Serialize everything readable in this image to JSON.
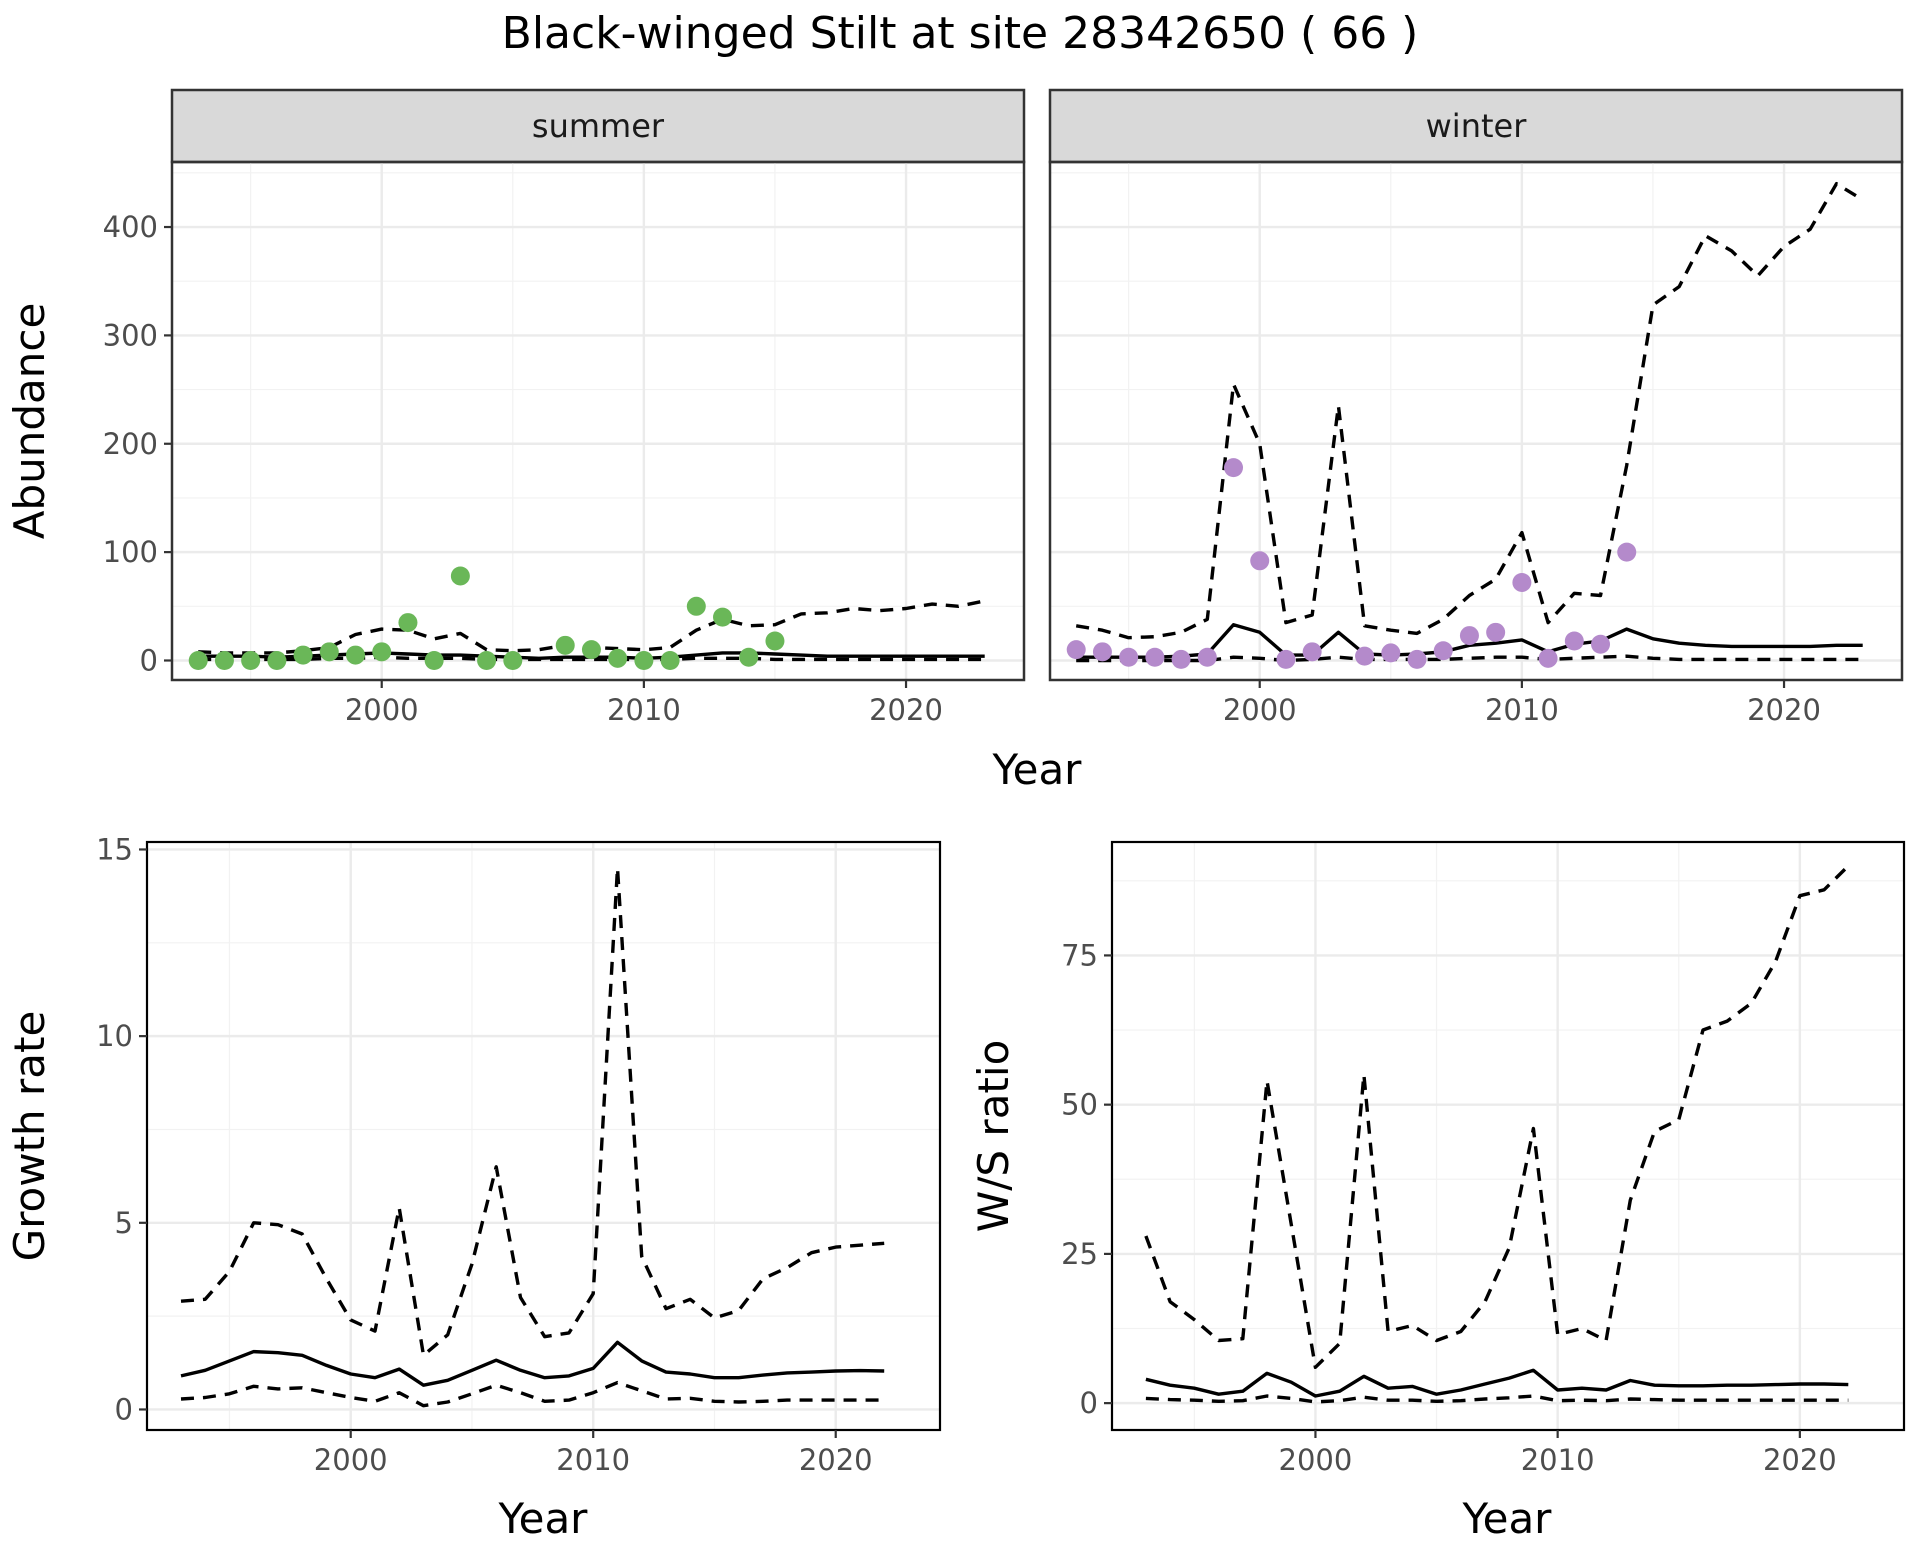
{
  "title": "Black-winged Stilt at site 28342650 ( 66 )",
  "colors": {
    "summer_points": "#6ab758",
    "winter_points": "#b48acb",
    "strip_fill": "#d9d9d9",
    "line": "#000000"
  },
  "chart_data": [
    {
      "type": "line",
      "panel": "summer",
      "strip": "summer",
      "xlabel": "Year",
      "ylabel": "Abundance",
      "xlim": [
        1992,
        2024.5
      ],
      "ylim": [
        -18,
        460
      ],
      "xticks": [
        2000,
        2010,
        2020
      ],
      "yticks": [
        0,
        100,
        200,
        300,
        400
      ],
      "grid": true,
      "x": [
        1993,
        1994,
        1995,
        1996,
        1997,
        1998,
        1999,
        2000,
        2001,
        2002,
        2003,
        2004,
        2005,
        2006,
        2007,
        2008,
        2009,
        2010,
        2011,
        2012,
        2013,
        2014,
        2015,
        2016,
        2017,
        2018,
        2019,
        2020,
        2021,
        2022,
        2023
      ],
      "series": [
        {
          "role": "estimate",
          "dash": "solid",
          "values": [
            4,
            4,
            4,
            3,
            4,
            5,
            6,
            7,
            6,
            5,
            5,
            4,
            3,
            2,
            3,
            3,
            3,
            2,
            3,
            5,
            7,
            7,
            6,
            5,
            4,
            4,
            4,
            4,
            4,
            4,
            4
          ]
        },
        {
          "role": "upper",
          "dash": "dashed",
          "values": [
            8,
            7,
            7,
            7,
            9,
            12,
            24,
            29,
            28,
            20,
            25,
            10,
            9,
            10,
            14,
            12,
            11,
            10,
            12,
            28,
            38,
            32,
            33,
            43,
            44,
            48,
            46,
            48,
            52,
            50,
            55
          ]
        },
        {
          "role": "lower",
          "dash": "dashed",
          "values": [
            1,
            1,
            1,
            1,
            1,
            2,
            2,
            3,
            2,
            2,
            2,
            1,
            1,
            1,
            1,
            1,
            1,
            1,
            1,
            2,
            2,
            2,
            1,
            1,
            1,
            1,
            1,
            1,
            1,
            1,
            1
          ]
        }
      ],
      "points": {
        "x": [
          1993,
          1994,
          1995,
          1996,
          1997,
          1998,
          1999,
          2000,
          2001,
          2002,
          2003,
          2004,
          2005,
          2007,
          2008,
          2009,
          2010,
          2011,
          2012,
          2013,
          2014,
          2015
        ],
        "y": [
          0,
          0,
          0,
          0,
          5,
          8,
          5,
          8,
          35,
          0,
          78,
          0,
          0,
          14,
          10,
          2,
          0,
          0,
          50,
          40,
          3,
          18
        ]
      }
    },
    {
      "type": "line",
      "panel": "winter",
      "strip": "winter",
      "xlabel": "Year",
      "ylabel": "Abundance",
      "xlim": [
        1992,
        2024.5
      ],
      "ylim": [
        -18,
        460
      ],
      "xticks": [
        2000,
        2010,
        2020
      ],
      "yticks": [
        0,
        100,
        200,
        300,
        400
      ],
      "grid": true,
      "x": [
        1993,
        1994,
        1995,
        1996,
        1997,
        1998,
        1999,
        2000,
        2001,
        2002,
        2003,
        2004,
        2005,
        2006,
        2007,
        2008,
        2009,
        2010,
        2011,
        2012,
        2013,
        2014,
        2015,
        2016,
        2017,
        2018,
        2019,
        2020,
        2021,
        2022,
        2023
      ],
      "series": [
        {
          "role": "estimate",
          "dash": "solid",
          "values": [
            3,
            3,
            3,
            3,
            4,
            6,
            33,
            26,
            5,
            5,
            26,
            6,
            5,
            6,
            8,
            14,
            16,
            19,
            8,
            15,
            18,
            29,
            20,
            16,
            14,
            13,
            13,
            13,
            13,
            14,
            14
          ]
        },
        {
          "role": "upper",
          "dash": "dashed",
          "values": [
            32,
            28,
            21,
            22,
            26,
            38,
            255,
            200,
            35,
            42,
            235,
            32,
            28,
            25,
            38,
            60,
            75,
            118,
            35,
            62,
            60,
            180,
            328,
            345,
            392,
            378,
            355,
            382,
            398,
            440,
            425
          ]
        },
        {
          "role": "lower",
          "dash": "dashed",
          "values": [
            0,
            0,
            0,
            0,
            0,
            0,
            3,
            2,
            0,
            1,
            3,
            1,
            1,
            1,
            1,
            2,
            3,
            3,
            1,
            2,
            3,
            4,
            2,
            1,
            1,
            1,
            1,
            1,
            1,
            1,
            1
          ]
        }
      ],
      "points": {
        "x": [
          1993,
          1994,
          1995,
          1996,
          1997,
          1998,
          1999,
          2000,
          2001,
          2002,
          2004,
          2005,
          2006,
          2007,
          2008,
          2009,
          2010,
          2011,
          2012,
          2013,
          2014
        ],
        "y": [
          10,
          8,
          3,
          3,
          1,
          3,
          178,
          92,
          1,
          8,
          4,
          7,
          1,
          9,
          23,
          26,
          72,
          2,
          18,
          15,
          100
        ]
      }
    },
    {
      "type": "line",
      "panel": "growth",
      "xlabel": "Year",
      "ylabel": "Growth rate",
      "xlim": [
        1991.6,
        2024.3
      ],
      "ylim": [
        -0.55,
        15.2
      ],
      "xticks": [
        2000,
        2010,
        2020
      ],
      "yticks": [
        0,
        5,
        10,
        15
      ],
      "grid": true,
      "x": [
        1993,
        1994,
        1995,
        1996,
        1997,
        1998,
        1999,
        2000,
        2001,
        2002,
        2003,
        2004,
        2005,
        2006,
        2007,
        2008,
        2009,
        2010,
        2011,
        2012,
        2013,
        2014,
        2015,
        2016,
        2017,
        2018,
        2019,
        2020,
        2021,
        2022
      ],
      "series": [
        {
          "role": "estimate",
          "dash": "solid",
          "values": [
            0.9,
            1.05,
            1.3,
            1.55,
            1.52,
            1.45,
            1.18,
            0.95,
            0.85,
            1.08,
            0.65,
            0.78,
            1.05,
            1.32,
            1.05,
            0.85,
            0.9,
            1.1,
            1.8,
            1.3,
            1.0,
            0.95,
            0.85,
            0.85,
            0.92,
            0.98,
            1.0,
            1.03,
            1.04,
            1.03
          ]
        },
        {
          "role": "upper",
          "dash": "dashed",
          "values": [
            2.9,
            2.95,
            3.7,
            5.0,
            4.95,
            4.7,
            3.5,
            2.4,
            2.1,
            5.4,
            1.45,
            2.0,
            3.9,
            6.5,
            3.0,
            1.95,
            2.05,
            3.1,
            14.5,
            4.1,
            2.7,
            2.95,
            2.45,
            2.65,
            3.5,
            3.8,
            4.2,
            4.35,
            4.4,
            4.45
          ]
        },
        {
          "role": "lower",
          "dash": "dashed",
          "values": [
            0.28,
            0.32,
            0.42,
            0.62,
            0.55,
            0.58,
            0.45,
            0.32,
            0.22,
            0.45,
            0.1,
            0.2,
            0.42,
            0.65,
            0.45,
            0.22,
            0.25,
            0.45,
            0.72,
            0.5,
            0.28,
            0.3,
            0.22,
            0.2,
            0.22,
            0.25,
            0.25,
            0.25,
            0.25,
            0.25
          ]
        }
      ]
    },
    {
      "type": "line",
      "panel": "ratio",
      "xlabel": "Year",
      "ylabel": "W/S ratio",
      "xlim": [
        1991.6,
        2024.3
      ],
      "ylim": [
        -4.5,
        94
      ],
      "xticks": [
        2000,
        2010,
        2020
      ],
      "yticks": [
        0,
        25,
        50,
        75
      ],
      "grid": true,
      "x": [
        1993,
        1994,
        1995,
        1996,
        1997,
        1998,
        1999,
        2000,
        2001,
        2002,
        2003,
        2004,
        2005,
        2006,
        2007,
        2008,
        2009,
        2010,
        2011,
        2012,
        2013,
        2014,
        2015,
        2016,
        2017,
        2018,
        2019,
        2020,
        2021,
        2022
      ],
      "series": [
        {
          "role": "estimate",
          "dash": "solid",
          "values": [
            4.0,
            3.0,
            2.5,
            1.5,
            2.0,
            5.0,
            3.5,
            1.2,
            2.0,
            4.5,
            2.5,
            2.8,
            1.5,
            2.2,
            3.2,
            4.2,
            5.5,
            2.2,
            2.5,
            2.2,
            3.8,
            3.0,
            2.9,
            2.9,
            3.0,
            3.0,
            3.1,
            3.2,
            3.2,
            3.1
          ]
        },
        {
          "role": "upper",
          "dash": "dashed",
          "values": [
            28,
            17,
            14,
            10.5,
            10.8,
            54,
            30,
            6,
            10,
            55,
            12,
            13,
            10.5,
            12,
            17,
            26,
            46,
            11.5,
            12.5,
            10.5,
            34,
            45.5,
            47.5,
            62.5,
            64,
            67,
            74,
            85,
            86,
            90
          ]
        },
        {
          "role": "lower",
          "dash": "dashed",
          "values": [
            0.8,
            0.6,
            0.5,
            0.3,
            0.4,
            1.2,
            0.8,
            0.2,
            0.4,
            1.0,
            0.5,
            0.5,
            0.3,
            0.4,
            0.7,
            0.9,
            1.2,
            0.4,
            0.5,
            0.4,
            0.7,
            0.6,
            0.5,
            0.5,
            0.5,
            0.5,
            0.5,
            0.5,
            0.5,
            0.5
          ]
        }
      ]
    }
  ]
}
